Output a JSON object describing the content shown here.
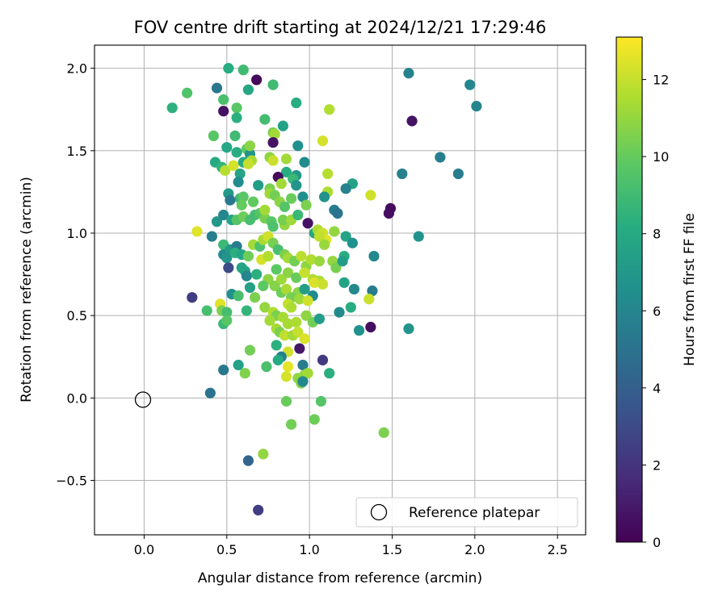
{
  "chart_data": {
    "type": "scatter",
    "title": "FOV centre drift starting at 2024/12/21 17:29:46",
    "xlabel": "Angular distance from reference (arcmin)",
    "ylabel": "Rotation from reference (arcmin)",
    "xlim": [
      -0.3,
      2.67
    ],
    "ylim": [
      -0.83,
      2.14
    ],
    "xticks": [
      0.0,
      0.5,
      1.0,
      1.5,
      2.0,
      2.5
    ],
    "xtick_labels": [
      "0.0",
      "0.5",
      "1.0",
      "1.5",
      "2.0",
      "2.5"
    ],
    "yticks": [
      -0.5,
      0.0,
      0.5,
      1.0,
      1.5,
      2.0
    ],
    "ytick_labels": [
      "−0.5",
      "0.0",
      "0.5",
      "1.0",
      "1.5",
      "2.0"
    ],
    "grid": true,
    "legend": {
      "placement": "lower-right",
      "entries": [
        "Reference platepar"
      ]
    },
    "reference_point": {
      "x": 0.0,
      "y": 0.0,
      "label": "Reference platepar"
    },
    "colorbar": {
      "label": "Hours from first FF file",
      "colormap": "viridis",
      "range": [
        0,
        13.1
      ],
      "ticks": [
        0,
        2,
        4,
        6,
        8,
        10,
        12
      ],
      "tick_labels": [
        "0",
        "2",
        "4",
        "6",
        "8",
        "10",
        "12"
      ]
    },
    "points": [
      [
        0.51,
        2.0,
        8.2
      ],
      [
        0.6,
        1.99,
        9.0
      ],
      [
        0.68,
        1.93,
        0.3
      ],
      [
        0.78,
        1.9,
        9.0
      ],
      [
        0.26,
        1.85,
        9.5
      ],
      [
        0.44,
        1.88,
        5.2
      ],
      [
        0.48,
        1.81,
        9.3
      ],
      [
        0.63,
        1.87,
        7.8
      ],
      [
        0.17,
        1.76,
        8.4
      ],
      [
        0.56,
        1.76,
        9.7
      ],
      [
        0.48,
        1.74,
        0.6
      ],
      [
        0.56,
        1.7,
        8.3
      ],
      [
        0.73,
        1.69,
        9.1
      ],
      [
        0.84,
        1.65,
        7.5
      ],
      [
        0.92,
        1.79,
        8.2
      ],
      [
        1.12,
        1.75,
        11.6
      ],
      [
        0.78,
        1.61,
        10.5
      ],
      [
        0.79,
        1.6,
        11.3
      ],
      [
        0.78,
        1.55,
        0.7
      ],
      [
        0.42,
        1.59,
        9.7
      ],
      [
        0.55,
        1.59,
        9.0
      ],
      [
        0.62,
        1.51,
        9.9
      ],
      [
        0.5,
        1.52,
        7.8
      ],
      [
        0.64,
        1.48,
        6.8
      ],
      [
        0.56,
        1.49,
        8.2
      ],
      [
        0.64,
        1.53,
        10.8
      ],
      [
        0.93,
        1.53,
        6.6
      ],
      [
        1.08,
        1.56,
        12.3
      ],
      [
        0.43,
        1.43,
        8.0
      ],
      [
        0.47,
        1.4,
        8.6
      ],
      [
        0.49,
        1.38,
        11.7
      ],
      [
        0.54,
        1.41,
        12.3
      ],
      [
        0.6,
        1.43,
        8.0
      ],
      [
        0.65,
        1.44,
        11.4
      ],
      [
        0.63,
        1.42,
        12.0
      ],
      [
        0.76,
        1.46,
        10.9
      ],
      [
        0.78,
        1.44,
        12.1
      ],
      [
        0.86,
        1.45,
        11.3
      ],
      [
        0.97,
        1.43,
        6.3
      ],
      [
        0.86,
        1.37,
        8.2
      ],
      [
        0.81,
        1.34,
        0.4
      ],
      [
        0.92,
        1.35,
        7.0
      ],
      [
        0.9,
        1.33,
        8.8
      ],
      [
        0.92,
        1.29,
        6.8
      ],
      [
        0.83,
        1.3,
        11.3
      ],
      [
        0.76,
        1.27,
        10.4
      ],
      [
        0.69,
        1.29,
        7.3
      ],
      [
        0.58,
        1.36,
        7.6
      ],
      [
        0.57,
        1.31,
        6.4
      ],
      [
        0.51,
        1.24,
        7.1
      ],
      [
        0.58,
        1.21,
        8.8
      ],
      [
        0.6,
        1.22,
        9.7
      ],
      [
        0.52,
        1.2,
        5.3
      ],
      [
        0.59,
        1.17,
        10.0
      ],
      [
        0.66,
        1.19,
        9.9
      ],
      [
        0.76,
        1.24,
        11.2
      ],
      [
        0.79,
        1.23,
        10.3
      ],
      [
        0.82,
        1.19,
        10.8
      ],
      [
        0.85,
        1.16,
        9.6
      ],
      [
        0.89,
        1.21,
        10.1
      ],
      [
        0.96,
        1.22,
        6.5
      ],
      [
        0.98,
        1.17,
        10.5
      ],
      [
        1.11,
        1.36,
        11.7
      ],
      [
        1.11,
        1.25,
        11.5
      ],
      [
        1.09,
        1.22,
        6.7
      ],
      [
        1.26,
        1.3,
        7.5
      ],
      [
        1.22,
        1.27,
        5.8
      ],
      [
        1.15,
        1.14,
        5.5
      ],
      [
        1.17,
        1.12,
        5.0
      ],
      [
        1.37,
        1.23,
        12.2
      ],
      [
        1.56,
        1.36,
        5.7
      ],
      [
        1.79,
        1.46,
        5.6
      ],
      [
        1.9,
        1.36,
        5.5
      ],
      [
        1.97,
        1.9,
        6.1
      ],
      [
        2.01,
        1.77,
        6.0
      ],
      [
        1.6,
        1.97,
        5.8
      ],
      [
        1.62,
        1.68,
        0.7
      ],
      [
        1.49,
        1.15,
        0.4
      ],
      [
        1.48,
        1.12,
        0.5
      ],
      [
        1.66,
        0.98,
        6.7
      ],
      [
        0.32,
        1.01,
        12.5
      ],
      [
        0.41,
        0.98,
        5.6
      ],
      [
        0.44,
        1.07,
        7.0
      ],
      [
        0.48,
        1.11,
        6.1
      ],
      [
        0.53,
        1.08,
        7.6
      ],
      [
        0.56,
        1.08,
        9.6
      ],
      [
        0.6,
        1.1,
        10.2
      ],
      [
        0.64,
        1.08,
        9.2
      ],
      [
        0.67,
        1.11,
        9.1
      ],
      [
        0.7,
        1.12,
        9.6
      ],
      [
        0.73,
        1.09,
        10.4
      ],
      [
        0.77,
        1.07,
        9.7
      ],
      [
        0.73,
        1.14,
        11.3
      ],
      [
        0.78,
        1.04,
        9.4
      ],
      [
        0.85,
        1.05,
        11.0
      ],
      [
        0.84,
        1.08,
        10.4
      ],
      [
        0.89,
        1.08,
        11.2
      ],
      [
        0.93,
        1.11,
        8.8
      ],
      [
        0.99,
        1.06,
        0.6
      ],
      [
        1.03,
        1.0,
        7.8
      ],
      [
        1.05,
        1.02,
        11.5
      ],
      [
        1.08,
        1.0,
        12.1
      ],
      [
        1.1,
        0.96,
        12.5
      ],
      [
        1.06,
        0.98,
        11.9
      ],
      [
        1.09,
        0.93,
        11.1
      ],
      [
        1.15,
        1.01,
        11.0
      ],
      [
        1.22,
        0.98,
        7.6
      ],
      [
        1.26,
        0.94,
        6.6
      ],
      [
        1.14,
        0.83,
        11.0
      ],
      [
        1.16,
        0.79,
        10.4
      ],
      [
        1.21,
        0.86,
        8.2
      ],
      [
        1.2,
        0.83,
        7.2
      ],
      [
        1.39,
        0.86,
        6.2
      ],
      [
        1.21,
        0.7,
        7.6
      ],
      [
        1.27,
        0.66,
        6.2
      ],
      [
        1.38,
        0.65,
        5.5
      ],
      [
        0.48,
        0.93,
        8.9
      ],
      [
        0.48,
        0.87,
        6.3
      ],
      [
        0.52,
        0.9,
        7.1
      ],
      [
        0.56,
        0.92,
        5.5
      ],
      [
        0.5,
        0.85,
        6.8
      ],
      [
        0.55,
        0.88,
        8.3
      ],
      [
        0.59,
        0.87,
        7.8
      ],
      [
        0.63,
        0.86,
        10.2
      ],
      [
        0.66,
        0.93,
        11.3
      ],
      [
        0.7,
        0.92,
        9.4
      ],
      [
        0.72,
        0.96,
        11.4
      ],
      [
        0.75,
        0.98,
        12.2
      ],
      [
        0.78,
        0.94,
        10.4
      ],
      [
        0.81,
        0.9,
        9.2
      ],
      [
        0.71,
        0.84,
        12.3
      ],
      [
        0.75,
        0.86,
        11.6
      ],
      [
        0.85,
        0.87,
        10.5
      ],
      [
        0.87,
        0.85,
        11.3
      ],
      [
        0.91,
        0.83,
        10.3
      ],
      [
        0.95,
        0.86,
        11.8
      ],
      [
        0.98,
        0.8,
        10.9
      ],
      [
        1.01,
        0.84,
        11.6
      ],
      [
        1.06,
        0.83,
        11.1
      ],
      [
        0.59,
        0.79,
        7.8
      ],
      [
        0.61,
        0.77,
        7.7
      ],
      [
        0.62,
        0.74,
        6.0
      ],
      [
        0.68,
        0.75,
        8.3
      ],
      [
        0.75,
        0.72,
        10.9
      ],
      [
        0.8,
        0.78,
        9.8
      ],
      [
        0.83,
        0.72,
        11.2
      ],
      [
        0.87,
        0.76,
        10.8
      ],
      [
        0.92,
        0.73,
        10.1
      ],
      [
        0.97,
        0.76,
        12.0
      ],
      [
        1.02,
        0.72,
        11.6
      ],
      [
        1.06,
        0.71,
        11.5
      ],
      [
        1.03,
        0.7,
        12.4
      ],
      [
        1.08,
        0.69,
        12.1
      ],
      [
        0.51,
        0.79,
        3.0
      ],
      [
        0.64,
        0.67,
        7.5
      ],
      [
        0.72,
        0.68,
        9.8
      ],
      [
        0.79,
        0.68,
        10.7
      ],
      [
        0.83,
        0.64,
        10.2
      ],
      [
        0.86,
        0.66,
        11.4
      ],
      [
        0.93,
        0.64,
        10.8
      ],
      [
        0.89,
        0.61,
        10.4
      ],
      [
        0.94,
        0.6,
        11.2
      ],
      [
        0.97,
        0.66,
        7.4
      ],
      [
        1.02,
        0.62,
        6.3
      ],
      [
        0.99,
        0.59,
        12.2
      ],
      [
        0.53,
        0.63,
        6.6
      ],
      [
        0.57,
        0.62,
        9.2
      ],
      [
        0.67,
        0.61,
        10.5
      ],
      [
        0.87,
        0.57,
        12.0
      ],
      [
        0.89,
        0.55,
        11.5
      ],
      [
        0.73,
        0.55,
        11.0
      ],
      [
        0.78,
        0.52,
        11.6
      ],
      [
        0.8,
        0.5,
        10.5
      ],
      [
        0.76,
        0.47,
        11.3
      ],
      [
        0.84,
        0.49,
        11.4
      ],
      [
        0.87,
        0.45,
        11.4
      ],
      [
        0.92,
        0.46,
        11.5
      ],
      [
        0.98,
        0.5,
        10.9
      ],
      [
        1.02,
        0.46,
        10.3
      ],
      [
        1.06,
        0.48,
        7.3
      ],
      [
        1.18,
        0.52,
        6.3
      ],
      [
        1.25,
        0.55,
        8.2
      ],
      [
        1.36,
        0.6,
        12.1
      ],
      [
        1.3,
        0.41,
        6.6
      ],
      [
        1.37,
        0.43,
        0.5
      ],
      [
        1.6,
        0.42,
        6.8
      ],
      [
        0.29,
        0.61,
        2.4
      ],
      [
        0.38,
        0.53,
        9.2
      ],
      [
        0.46,
        0.57,
        12.5
      ],
      [
        0.47,
        0.53,
        10.5
      ],
      [
        0.5,
        0.52,
        9.1
      ],
      [
        0.48,
        0.45,
        8.8
      ],
      [
        0.5,
        0.47,
        9.7
      ],
      [
        0.62,
        0.53,
        8.6
      ],
      [
        0.8,
        0.42,
        11.4
      ],
      [
        0.82,
        0.4,
        10.5
      ],
      [
        0.85,
        0.38,
        11.9
      ],
      [
        0.9,
        0.38,
        11.3
      ],
      [
        0.93,
        0.4,
        12.0
      ],
      [
        0.97,
        0.36,
        12.4
      ],
      [
        0.94,
        0.3,
        0.8
      ],
      [
        0.87,
        0.28,
        12.2
      ],
      [
        0.8,
        0.32,
        8.3
      ],
      [
        0.83,
        0.25,
        5.7
      ],
      [
        0.64,
        0.29,
        10.3
      ],
      [
        0.57,
        0.2,
        7.5
      ],
      [
        0.48,
        0.17,
        5.3
      ],
      [
        0.61,
        0.15,
        10.6
      ],
      [
        0.74,
        0.19,
        9.3
      ],
      [
        0.81,
        0.23,
        8.0
      ],
      [
        0.87,
        0.19,
        12.6
      ],
      [
        0.86,
        0.13,
        12.3
      ],
      [
        0.96,
        0.2,
        5.5
      ],
      [
        1.08,
        0.23,
        2.3
      ],
      [
        0.93,
        0.12,
        10.9
      ],
      [
        0.95,
        0.09,
        10.6
      ],
      [
        0.97,
        0.14,
        11.0
      ],
      [
        0.99,
        0.15,
        11.3
      ],
      [
        0.96,
        0.1,
        6.2
      ],
      [
        1.12,
        0.15,
        8.3
      ],
      [
        0.4,
        0.03,
        5.0
      ],
      [
        0.86,
        -0.02,
        10.1
      ],
      [
        1.07,
        -0.02,
        9.6
      ],
      [
        1.03,
        -0.13,
        10.2
      ],
      [
        0.89,
        -0.16,
        10.3
      ],
      [
        1.45,
        -0.21,
        10.5
      ],
      [
        0.72,
        -0.34,
        11.0
      ],
      [
        0.63,
        -0.38,
        4.3
      ],
      [
        0.69,
        -0.68,
        2.4
      ]
    ]
  }
}
